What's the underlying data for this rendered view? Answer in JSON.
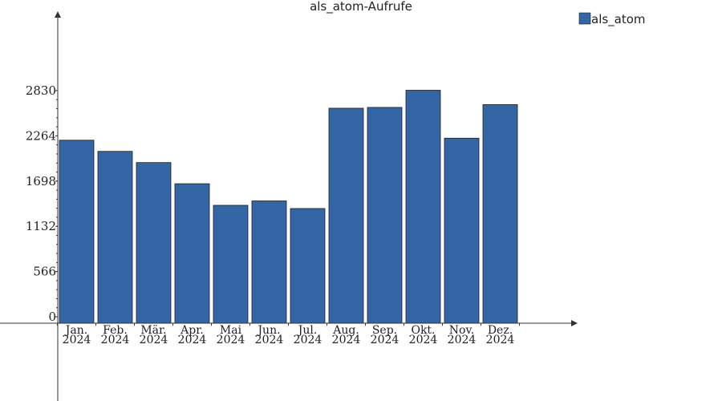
{
  "chart_data": {
    "type": "bar",
    "title": "als_atom-Aufrufe",
    "categories": [
      [
        "Jan.",
        "2024"
      ],
      [
        "Feb.",
        "2024"
      ],
      [
        "Mär.",
        "2024"
      ],
      [
        "Apr.",
        "2024"
      ],
      [
        "Mai",
        "2024"
      ],
      [
        "Jun.",
        "2024"
      ],
      [
        "Jul.",
        "2024"
      ],
      [
        "Aug.",
        "2024"
      ],
      [
        "Sep.",
        "2024"
      ],
      [
        "Okt.",
        "2024"
      ],
      [
        "Nov.",
        "2024"
      ],
      [
        "Dez.",
        "2024"
      ]
    ],
    "series": [
      {
        "name": "als_atom",
        "color": "#3465a4",
        "values": [
          2210,
          2070,
          1930,
          1665,
          1395,
          1450,
          1355,
          2610,
          2620,
          2835,
          2235,
          2655
        ]
      }
    ],
    "yticks": [
      0,
      566,
      1132,
      1698,
      2264,
      2830
    ],
    "ylim": [
      0,
      2830
    ],
    "grid": false,
    "legend": "top-right"
  }
}
